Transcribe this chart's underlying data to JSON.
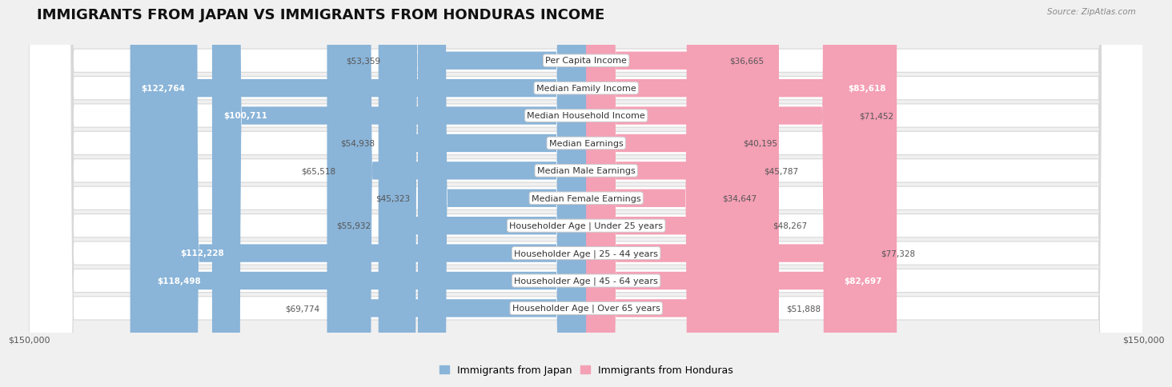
{
  "title": "IMMIGRANTS FROM JAPAN VS IMMIGRANTS FROM HONDURAS INCOME",
  "source": "Source: ZipAtlas.com",
  "categories": [
    "Per Capita Income",
    "Median Family Income",
    "Median Household Income",
    "Median Earnings",
    "Median Male Earnings",
    "Median Female Earnings",
    "Householder Age | Under 25 years",
    "Householder Age | 25 - 44 years",
    "Householder Age | 45 - 64 years",
    "Householder Age | Over 65 years"
  ],
  "japan_values": [
    53359,
    122764,
    100711,
    54938,
    65518,
    45323,
    55932,
    112228,
    118498,
    69774
  ],
  "honduras_values": [
    36665,
    83618,
    71452,
    40195,
    45787,
    34647,
    48267,
    77328,
    82697,
    51888
  ],
  "japan_color": "#8ab4d8",
  "honduras_color": "#f4a0b5",
  "honduras_color_dark": "#e8638a",
  "japan_label": "Immigrants from Japan",
  "honduras_label": "Immigrants from Honduras",
  "axis_max": 150000,
  "bg_color": "#f0f0f0",
  "row_bg_color": "#ffffff",
  "row_border_color": "#d8d8d8",
  "title_fontsize": 13,
  "label_fontsize": 8,
  "value_fontsize": 7.5,
  "legend_fontsize": 9,
  "japan_threshold": 80000,
  "honduras_threshold": 80000
}
